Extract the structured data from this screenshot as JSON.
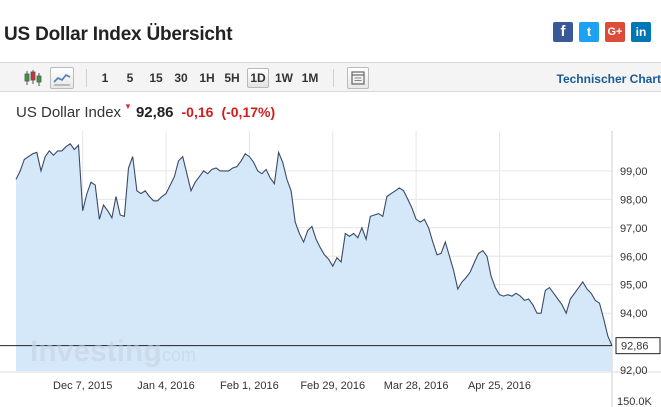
{
  "header": {
    "title": "US Dollar Index Übersicht"
  },
  "share": [
    {
      "name": "facebook",
      "glyph": "f",
      "color": "#3b5998"
    },
    {
      "name": "twitter",
      "glyph": "t",
      "color": "#1da1f2"
    },
    {
      "name": "googleplus",
      "glyph": "G+",
      "color": "#dd4b39"
    },
    {
      "name": "linkedin",
      "glyph": "in",
      "color": "#0077b5"
    }
  ],
  "toolbar": {
    "timeframes": [
      "1",
      "5",
      "15",
      "30",
      "1H",
      "5H",
      "1D",
      "1W",
      "1M"
    ],
    "active_timeframe": "1D",
    "technical_link": "Technischer Chart",
    "icons": [
      "candlestick-icon",
      "area-chart-icon",
      "settings-icon"
    ]
  },
  "quote": {
    "name": "US Dollar Index",
    "price": "92,86",
    "change": "-0,16",
    "change_pct": "(-0,17%)",
    "direction": "down",
    "color_down": "#d01e1e"
  },
  "chart": {
    "watermark": "Investing",
    "watermark_suffix": ".com",
    "last_value_label": "92,86",
    "volume_label": "150.0K"
  },
  "chart_data": {
    "type": "area",
    "title": "",
    "xlabel": "",
    "ylabel": "",
    "ylim": [
      91.97,
      100.4
    ],
    "y_ticks": [
      92,
      93,
      94,
      95,
      96,
      97,
      98,
      99
    ],
    "y_tick_labels": [
      "92,00",
      "93,00",
      "94,00",
      "95,00",
      "96,00",
      "97,00",
      "98,00",
      "99,00"
    ],
    "x_tick_labels": [
      "Dec 7, 2015",
      "Jan 4, 2016",
      "Feb 1, 2016",
      "Feb 29, 2016",
      "Mar 28, 2016",
      "Apr 25, 2016"
    ],
    "x_tick_index": [
      16,
      36,
      56,
      76,
      96,
      116
    ],
    "grid": true,
    "series": [
      {
        "values": [
          98.7,
          99.0,
          99.4,
          99.5,
          99.6,
          99.65,
          99.0,
          99.5,
          99.7,
          99.55,
          99.7,
          99.7,
          99.85,
          99.95,
          99.75,
          99.9,
          97.6,
          98.2,
          98.6,
          98.5,
          97.3,
          97.8,
          97.6,
          97.35,
          98.1,
          97.45,
          97.4,
          99.1,
          99.5,
          98.3,
          98.2,
          98.3,
          98.1,
          97.95,
          97.95,
          98.1,
          98.2,
          98.5,
          98.8,
          99.35,
          99.5,
          98.9,
          98.3,
          98.6,
          98.8,
          99.0,
          98.9,
          99.05,
          99.1,
          99.0,
          99.0,
          99.0,
          99.1,
          99.15,
          99.35,
          99.6,
          99.5,
          99.3,
          99.0,
          98.9,
          99.05,
          98.75,
          98.55,
          99.65,
          99.3,
          98.7,
          98.3,
          97.2,
          96.8,
          96.5,
          96.9,
          97.05,
          96.6,
          96.3,
          96.05,
          95.9,
          95.65,
          95.95,
          95.8,
          96.8,
          96.7,
          96.8,
          96.65,
          97.0,
          96.6,
          97.4,
          97.45,
          97.5,
          97.4,
          98.1,
          98.2,
          98.3,
          98.4,
          98.3,
          98.0,
          97.7,
          97.3,
          97.2,
          97.3,
          97.0,
          96.5,
          96.05,
          96.1,
          96.5,
          96.0,
          95.5,
          94.85,
          95.1,
          95.25,
          95.45,
          95.8,
          96.1,
          96.2,
          96.0,
          95.3,
          94.9,
          94.65,
          94.6,
          94.65,
          94.6,
          94.7,
          94.6,
          94.45,
          94.5,
          94.3,
          94.0,
          94.0,
          94.8,
          94.9,
          94.7,
          94.5,
          94.3,
          94.0,
          94.5,
          94.7,
          94.9,
          95.1,
          94.85,
          94.7,
          94.45,
          94.35,
          93.8,
          93.2,
          92.86
        ]
      }
    ]
  }
}
